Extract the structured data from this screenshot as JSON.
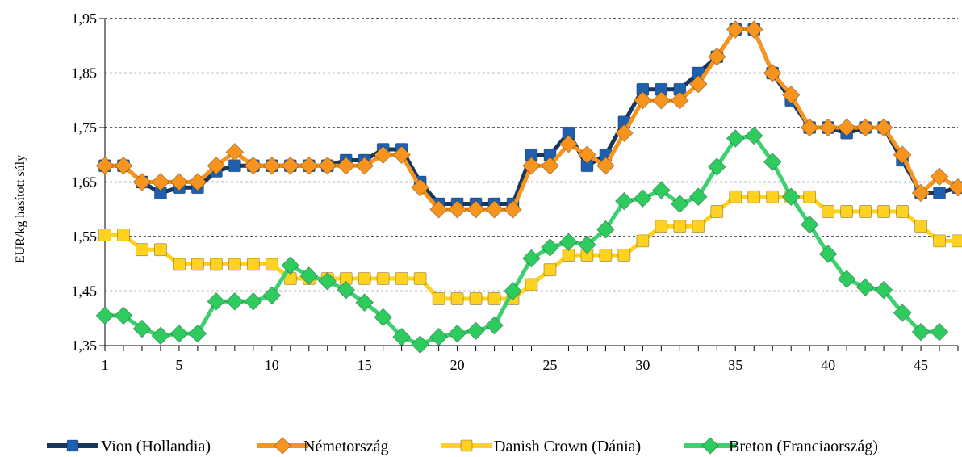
{
  "chart_data": {
    "type": "line",
    "title": "",
    "xlabel": "",
    "ylabel": "EUR/kg hasított súly",
    "x": [
      1,
      2,
      3,
      4,
      5,
      6,
      7,
      8,
      9,
      10,
      11,
      12,
      13,
      14,
      15,
      16,
      17,
      18,
      19,
      20,
      21,
      22,
      23,
      24,
      25,
      26,
      27,
      28,
      29,
      30,
      31,
      32,
      33,
      34,
      35,
      36,
      37,
      38,
      39,
      40,
      41,
      42,
      43,
      44,
      45,
      46,
      47
    ],
    "xticks": [
      1,
      5,
      10,
      15,
      20,
      25,
      30,
      35,
      40,
      45
    ],
    "xtick_labels": [
      "1",
      "5",
      "10",
      "15",
      "20",
      "25",
      "30",
      "35",
      "40",
      "45"
    ],
    "xlim": [
      1,
      47
    ],
    "ylim": [
      1.35,
      1.95
    ],
    "yticks": [
      1.35,
      1.45,
      1.55,
      1.65,
      1.75,
      1.85,
      1.95
    ],
    "ytick_labels": [
      "1,35",
      "1,45",
      "1,55",
      "1,65",
      "1,75",
      "1,85",
      "1,95"
    ],
    "grid": "horizontal dashed",
    "legend_position": "bottom",
    "series": [
      {
        "name": "Vion (Hollandia)",
        "color": "#1f5fb0",
        "line_color": "#17375e",
        "marker": "square",
        "values": [
          1.68,
          1.68,
          1.65,
          1.63,
          1.64,
          1.64,
          1.67,
          1.68,
          1.68,
          1.68,
          1.68,
          1.68,
          1.68,
          1.69,
          1.69,
          1.71,
          1.71,
          1.65,
          1.61,
          1.61,
          1.61,
          1.61,
          1.61,
          1.7,
          1.7,
          1.74,
          1.68,
          1.7,
          1.76,
          1.82,
          1.82,
          1.82,
          1.85,
          1.88,
          1.93,
          1.93,
          1.85,
          1.8,
          1.75,
          1.75,
          1.74,
          1.75,
          1.75,
          1.69,
          1.63,
          1.63,
          1.64
        ]
      },
      {
        "name": "Németország",
        "color": "#f7941d",
        "line_color": "#f7941d",
        "marker": "diamond",
        "values": [
          1.68,
          1.68,
          1.65,
          1.65,
          1.65,
          1.65,
          1.68,
          1.705,
          1.68,
          1.68,
          1.68,
          1.68,
          1.68,
          1.68,
          1.68,
          1.7,
          1.7,
          1.64,
          1.6,
          1.6,
          1.6,
          1.6,
          1.6,
          1.68,
          1.68,
          1.72,
          1.7,
          1.68,
          1.74,
          1.8,
          1.8,
          1.8,
          1.83,
          1.88,
          1.93,
          1.93,
          1.85,
          1.81,
          1.75,
          1.75,
          1.75,
          1.75,
          1.75,
          1.7,
          1.63,
          1.66,
          1.64
        ]
      },
      {
        "name": "Danish Crown (Dánia)",
        "color": "#ffd21f",
        "line_color": "#ffd21f",
        "marker": "square",
        "values": [
          1.553,
          1.553,
          1.526,
          1.526,
          1.499,
          1.499,
          1.499,
          1.499,
          1.499,
          1.499,
          1.473,
          1.473,
          1.473,
          1.473,
          1.473,
          1.473,
          1.473,
          1.473,
          1.436,
          1.436,
          1.436,
          1.436,
          1.436,
          1.462,
          1.489,
          1.516,
          1.516,
          1.516,
          1.516,
          1.542,
          1.569,
          1.569,
          1.569,
          1.596,
          1.623,
          1.623,
          1.623,
          1.623,
          1.623,
          1.596,
          1.596,
          1.596,
          1.596,
          1.596,
          1.569,
          1.542,
          1.542
        ]
      },
      {
        "name": "Breton (Franciaország)",
        "color": "#2ecc5f",
        "line_color": "#3ed070",
        "marker": "diamond",
        "values": [
          1.405,
          1.405,
          1.381,
          1.368,
          1.372,
          1.372,
          1.431,
          1.431,
          1.431,
          1.442,
          1.497,
          1.478,
          1.468,
          1.452,
          1.429,
          1.402,
          1.366,
          1.352,
          1.366,
          1.372,
          1.377,
          1.387,
          1.45,
          1.51,
          1.53,
          1.54,
          1.535,
          1.563,
          1.615,
          1.62,
          1.635,
          1.61,
          1.623,
          1.678,
          1.73,
          1.735,
          1.687,
          1.623,
          1.572,
          1.518,
          1.472,
          1.457,
          1.452,
          1.41,
          1.375,
          1.375,
          null
        ]
      }
    ]
  }
}
